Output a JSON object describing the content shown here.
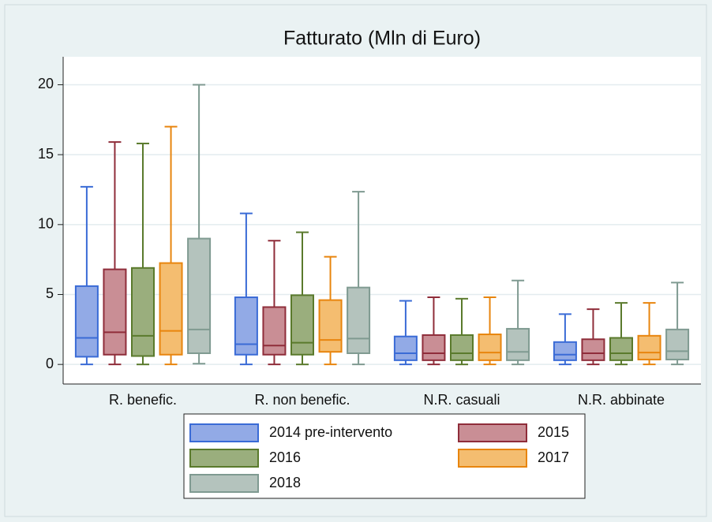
{
  "chart_data": {
    "type": "box",
    "title": "Fatturato (Mln di Euro)",
    "categories": [
      "R. benefic.",
      "R. non benefic.",
      "N.R. casuali",
      "N.R. abbinate"
    ],
    "ylim": [
      -1.4,
      22
    ],
    "yticks": [
      0,
      5,
      10,
      15,
      20
    ],
    "grid": true,
    "legend": "bottom",
    "series": [
      {
        "name": "2014 pre-intervento",
        "color": "#3a6bd6",
        "fill": "#92aae6",
        "values": [
          {
            "min": 0,
            "q1": 0.55,
            "median": 1.9,
            "q3": 5.6,
            "max": 12.7
          },
          {
            "min": 0,
            "q1": 0.7,
            "median": 1.45,
            "q3": 4.8,
            "max": 10.8
          },
          {
            "min": 0,
            "q1": 0.3,
            "median": 0.8,
            "q3": 2.0,
            "max": 4.55
          },
          {
            "min": 0,
            "q1": 0.3,
            "median": 0.7,
            "q3": 1.6,
            "max": 3.6
          }
        ]
      },
      {
        "name": "2015",
        "color": "#8f2d3a",
        "fill": "#c98e95",
        "values": [
          {
            "min": 0,
            "q1": 0.7,
            "median": 2.3,
            "q3": 6.8,
            "max": 15.9
          },
          {
            "min": 0,
            "q1": 0.7,
            "median": 1.35,
            "q3": 4.1,
            "max": 8.85
          },
          {
            "min": 0,
            "q1": 0.3,
            "median": 0.8,
            "q3": 2.1,
            "max": 4.8
          },
          {
            "min": 0,
            "q1": 0.3,
            "median": 0.8,
            "q3": 1.8,
            "max": 3.95
          }
        ]
      },
      {
        "name": "2016",
        "color": "#5a7a2c",
        "fill": "#9aae7d",
        "values": [
          {
            "min": 0,
            "q1": 0.6,
            "median": 2.05,
            "q3": 6.9,
            "max": 15.8
          },
          {
            "min": 0,
            "q1": 0.7,
            "median": 1.55,
            "q3": 4.95,
            "max": 9.45
          },
          {
            "min": 0,
            "q1": 0.3,
            "median": 0.8,
            "q3": 2.1,
            "max": 4.7
          },
          {
            "min": 0,
            "q1": 0.3,
            "median": 0.8,
            "q3": 1.9,
            "max": 4.4
          }
        ]
      },
      {
        "name": "2017",
        "color": "#e8850e",
        "fill": "#f4bd70",
        "values": [
          {
            "min": 0,
            "q1": 0.7,
            "median": 2.4,
            "q3": 7.25,
            "max": 17
          },
          {
            "min": 0,
            "q1": 0.9,
            "median": 1.75,
            "q3": 4.6,
            "max": 7.7
          },
          {
            "min": 0,
            "q1": 0.3,
            "median": 0.85,
            "q3": 2.15,
            "max": 4.8
          },
          {
            "min": 0,
            "q1": 0.35,
            "median": 0.85,
            "q3": 2.05,
            "max": 4.4
          }
        ]
      },
      {
        "name": "2018",
        "color": "#7f9a91",
        "fill": "#b4c3bd",
        "values": [
          {
            "min": 0.05,
            "q1": 0.8,
            "median": 2.5,
            "q3": 9.0,
            "max": 20
          },
          {
            "min": 0,
            "q1": 0.8,
            "median": 1.85,
            "q3": 5.5,
            "max": 12.35
          },
          {
            "min": 0,
            "q1": 0.3,
            "median": 0.9,
            "q3": 2.55,
            "max": 6.0
          },
          {
            "min": 0,
            "q1": 0.35,
            "median": 0.95,
            "q3": 2.5,
            "max": 5.85
          }
        ]
      }
    ]
  }
}
